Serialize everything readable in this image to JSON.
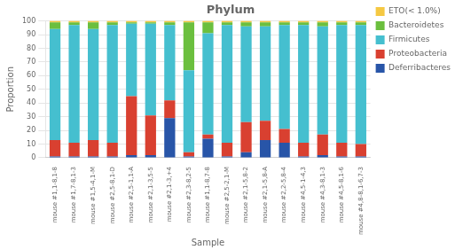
{
  "chart_data": {
    "type": "bar",
    "title": "Phylum",
    "x_label": "Sample",
    "y_label": "Proportion",
    "categories": [
      "mouse #1,1-8,1-8",
      "mouse #1,7-8,1-3",
      "mouse #1,5-4,1-M",
      "mouse #2,5-8,1-D",
      "mouse #2,5-1,1-A",
      "mouse #2,1-3,5-5",
      "mouse #2,1-3,+4",
      "mouse #2,3-8,2-5",
      "mouse #1,1-8,7-8",
      "mouse #2,5-2,1-M",
      "mouse #2,1-5,8-2",
      "mouse #2,1-5,8-A",
      "mouse #2,2-5,8-4",
      "mouse #4,5-1-4,3",
      "mouse #4,3-8,1-3",
      "mouse #4,5-8,1-6",
      "mouse #4,8-8,1-6,7-3"
    ],
    "series": [
      {
        "name": "Deferribacteres",
        "color": "#2855A8",
        "values": [
          1,
          1,
          1,
          1,
          2,
          2,
          29,
          1,
          14,
          1,
          4,
          13,
          11,
          1,
          2,
          1,
          1
        ]
      },
      {
        "name": "Proteobacteria",
        "color": "#D94030",
        "values": [
          12,
          10,
          12,
          10,
          43,
          29,
          13,
          3,
          3,
          10,
          22,
          14,
          10,
          10,
          15,
          10,
          9
        ]
      },
      {
        "name": "Firmicutes",
        "color": "#45BFCF",
        "values": [
          81,
          86,
          81,
          86,
          53,
          67,
          55,
          60,
          74,
          86,
          70,
          69,
          76,
          86,
          79,
          86,
          87
        ]
      },
      {
        "name": "Bacteroidetes",
        "color": "#6BBF3E",
        "values": [
          5,
          2,
          5,
          2,
          1,
          1,
          2,
          35,
          8,
          2,
          3,
          3,
          2,
          2,
          3,
          2,
          2
        ]
      },
      {
        "name": "ETO(< 1.0%)",
        "color": "#F5C842",
        "values": [
          1,
          1,
          1,
          1,
          1,
          1,
          1,
          1,
          1,
          1,
          1,
          1,
          1,
          1,
          1,
          1,
          1
        ]
      }
    ],
    "stacked": true,
    "ylim": [
      0,
      100
    ],
    "yticks": [
      0,
      10,
      20,
      30,
      40,
      50,
      60,
      70,
      80,
      90,
      100
    ],
    "grid": true,
    "legend": "upper right"
  }
}
